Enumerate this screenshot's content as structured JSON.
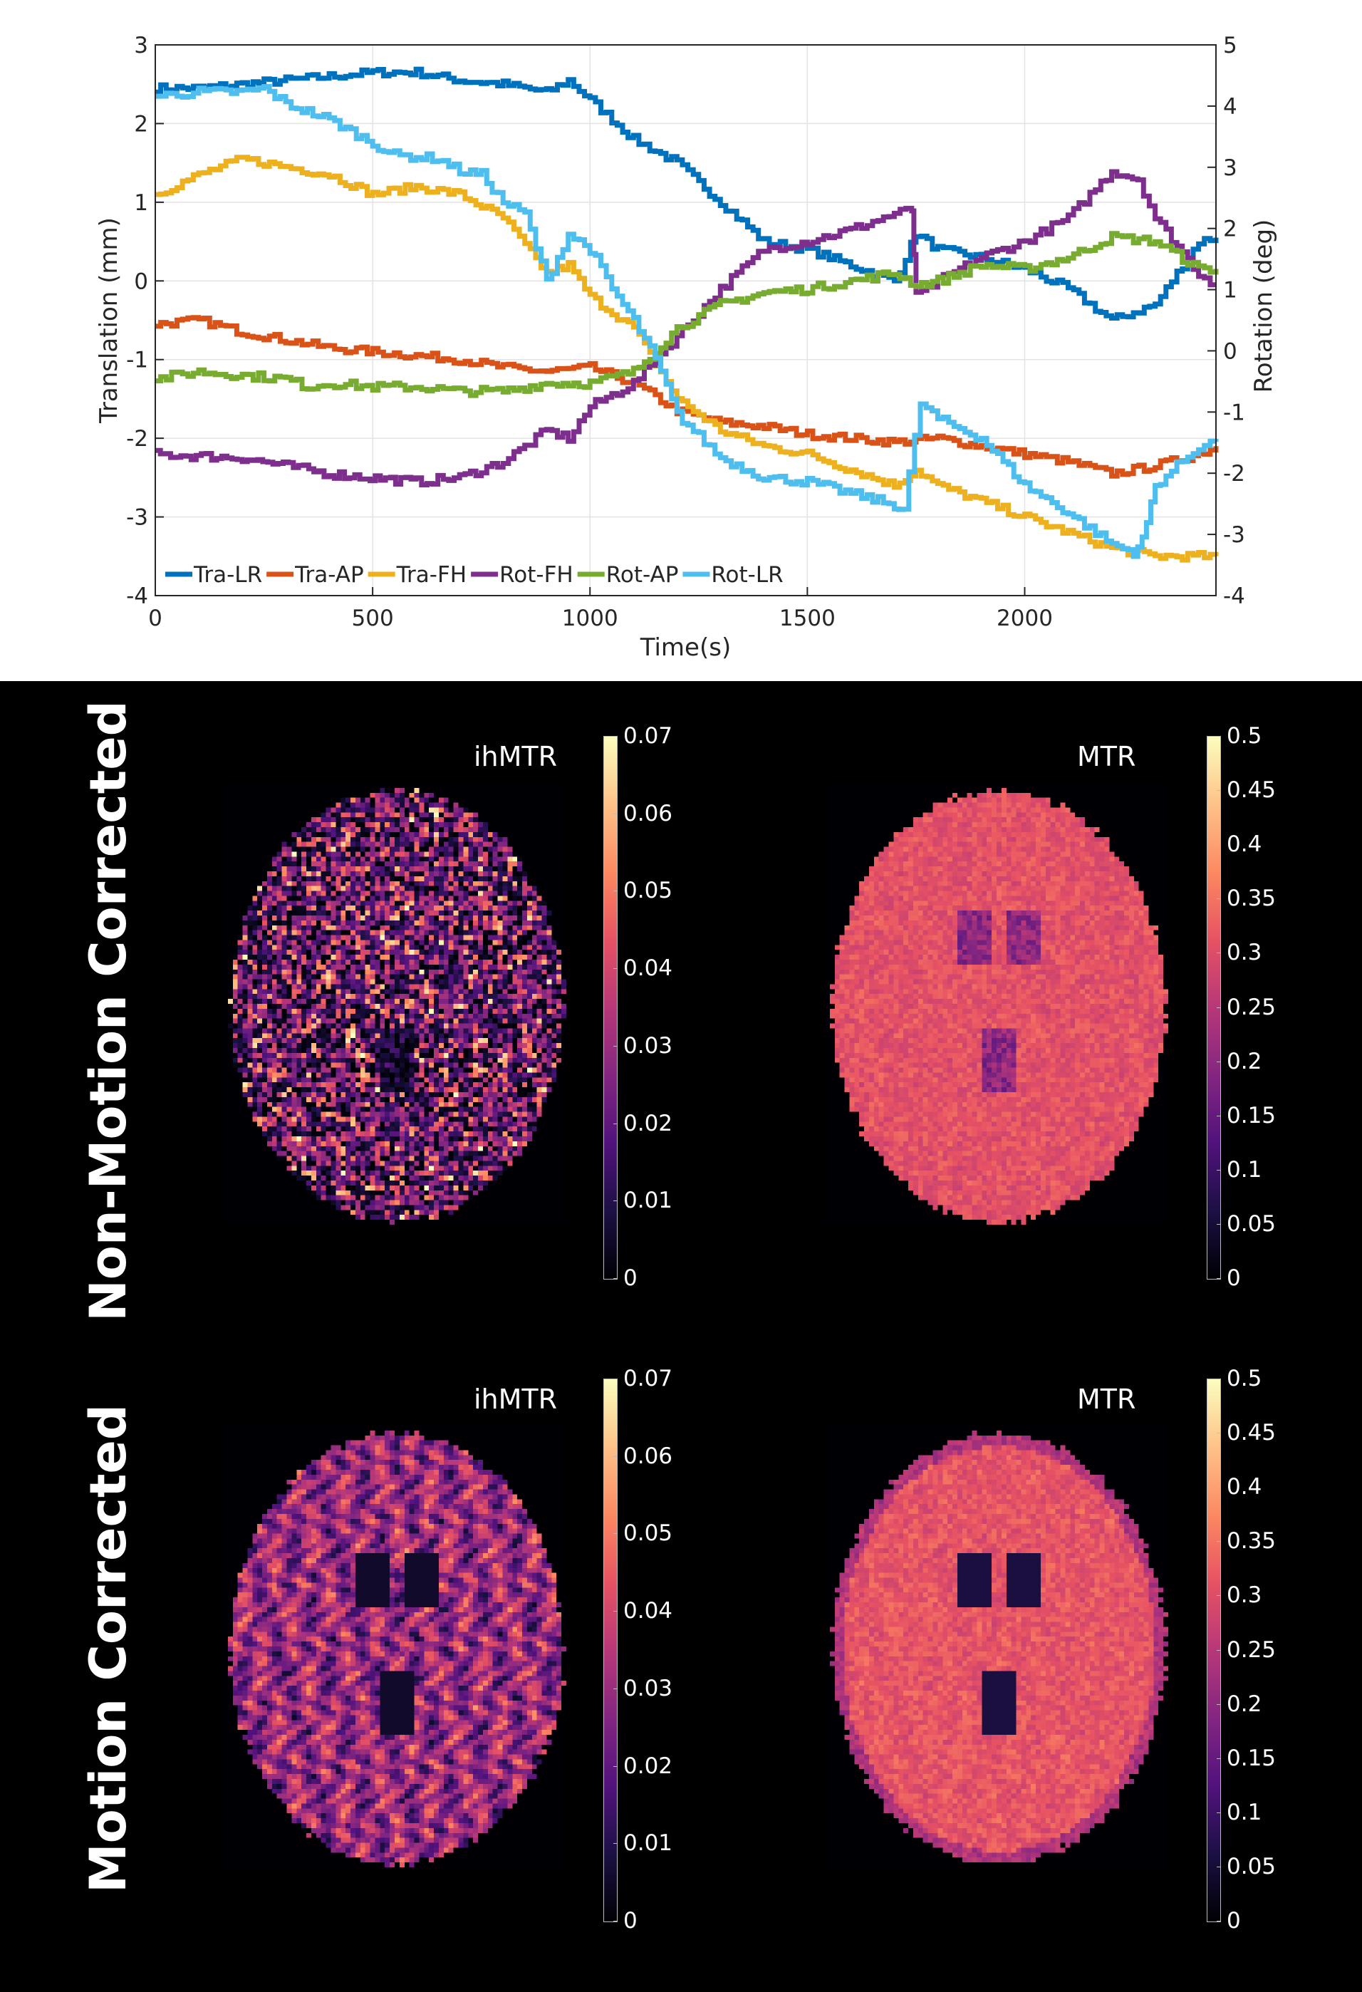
{
  "chart_data": {
    "type": "line",
    "xlabel": "Time(s)",
    "ylabel": "Translation (mm)",
    "y2label": "Rotation (deg)",
    "xlim": [
      0,
      2440
    ],
    "ylim": [
      -4,
      3
    ],
    "y2lim": [
      -4,
      5
    ],
    "xticks": [
      "0",
      "500",
      "1000",
      "1500",
      "2000"
    ],
    "yticks": [
      "3",
      "2",
      "1",
      "0",
      "-1",
      "-2",
      "-3",
      "-4"
    ],
    "y2ticks": [
      "5",
      "4",
      "3",
      "2",
      "1",
      "0",
      "-1",
      "-2",
      "-3",
      "-4"
    ],
    "grid": true,
    "legend_position": "bottom-left",
    "series": [
      {
        "name": "Tra-LR",
        "axis": "left",
        "color": "#0072bd",
        "t": [
          0,
          100,
          200,
          300,
          400,
          500,
          600,
          700,
          800,
          900,
          950,
          1000,
          1100,
          1200,
          1300,
          1400,
          1500,
          1600,
          1700,
          1750,
          1800,
          1900,
          2000,
          2100,
          2200,
          2300,
          2400,
          2440
        ],
        "values": [
          2.45,
          2.45,
          2.5,
          2.55,
          2.6,
          2.65,
          2.65,
          2.55,
          2.5,
          2.4,
          2.55,
          2.3,
          1.8,
          1.5,
          1.0,
          0.5,
          0.4,
          0.2,
          0,
          0.6,
          0.4,
          0.3,
          0.15,
          -0.1,
          -0.5,
          -0.3,
          0.5,
          0.55
        ]
      },
      {
        "name": "Tra-AP",
        "axis": "left",
        "color": "#d95319",
        "t": [
          0,
          100,
          200,
          300,
          400,
          500,
          600,
          700,
          800,
          900,
          1000,
          1100,
          1200,
          1300,
          1400,
          1500,
          1600,
          1700,
          1800,
          1900,
          2000,
          2100,
          2200,
          2300,
          2400,
          2440
        ],
        "values": [
          -0.55,
          -0.5,
          -0.65,
          -0.75,
          -0.85,
          -0.9,
          -0.95,
          -1.0,
          -1.1,
          -1.15,
          -1.1,
          -1.3,
          -1.65,
          -1.8,
          -1.85,
          -1.95,
          -2.0,
          -2.05,
          -2.0,
          -2.1,
          -2.2,
          -2.3,
          -2.45,
          -2.35,
          -2.2,
          -2.1
        ]
      },
      {
        "name": "Tra-FH",
        "axis": "left",
        "color": "#edb120",
        "t": [
          0,
          100,
          200,
          300,
          400,
          500,
          600,
          700,
          800,
          900,
          950,
          1000,
          1100,
          1200,
          1300,
          1400,
          1500,
          1600,
          1700,
          1750,
          1800,
          1900,
          2000,
          2100,
          2200,
          2300,
          2400,
          2440
        ],
        "values": [
          1.1,
          1.35,
          1.55,
          1.45,
          1.35,
          1.1,
          1.2,
          1.1,
          0.8,
          0.1,
          0.2,
          -0.2,
          -0.6,
          -1.5,
          -1.9,
          -2.1,
          -2.2,
          -2.4,
          -2.6,
          -2.4,
          -2.6,
          -2.8,
          -3.0,
          -3.2,
          -3.4,
          -3.5,
          -3.5,
          -3.5
        ]
      },
      {
        "name": "Rot-FH",
        "axis": "right",
        "color": "#7e2f8e",
        "t": [
          0,
          200,
          400,
          600,
          700,
          800,
          850,
          900,
          950,
          1000,
          1100,
          1200,
          1300,
          1400,
          1500,
          1600,
          1700,
          1740,
          1750,
          1800,
          1900,
          2000,
          2100,
          2200,
          2260,
          2300,
          2400,
          2440
        ],
        "values": [
          -1.69,
          -1.75,
          -2.01,
          -2.14,
          -2.07,
          -1.81,
          -1.56,
          -1.3,
          -1.43,
          -0.91,
          -0.53,
          0.24,
          1.01,
          1.66,
          1.79,
          1.98,
          2.24,
          2.3,
          0.89,
          1.14,
          1.53,
          1.79,
          2.17,
          2.94,
          2.81,
          2.17,
          1.27,
          1.08
        ]
      },
      {
        "name": "Rot-AP",
        "axis": "right",
        "color": "#77ac30",
        "t": [
          0,
          100,
          200,
          300,
          350,
          400,
          500,
          600,
          700,
          800,
          900,
          1000,
          1100,
          1200,
          1300,
          1400,
          1500,
          1600,
          1700,
          1750,
          1800,
          1900,
          2000,
          2100,
          2200,
          2300,
          2400,
          2440
        ],
        "values": [
          -0.46,
          -0.34,
          -0.4,
          -0.46,
          -0.59,
          -0.53,
          -0.59,
          -0.59,
          -0.66,
          -0.66,
          -0.53,
          -0.53,
          -0.34,
          0.37,
          0.76,
          0.95,
          1.01,
          1.14,
          1.27,
          1.08,
          1.14,
          1.4,
          1.34,
          1.53,
          1.86,
          1.79,
          1.34,
          1.34
        ]
      },
      {
        "name": "Rot-LR",
        "axis": "right",
        "color": "#4dbeee",
        "t": [
          0,
          100,
          200,
          250,
          300,
          400,
          500,
          550,
          650,
          700,
          750,
          800,
          850,
          900,
          950,
          1000,
          1050,
          1100,
          1150,
          1200,
          1300,
          1400,
          1500,
          1600,
          1700,
          1720,
          1760,
          1800,
          1900,
          2000,
          2100,
          2200,
          2250,
          2270,
          2300,
          2400,
          2440
        ],
        "values": [
          4.16,
          4.23,
          4.23,
          4.29,
          4.04,
          3.78,
          3.39,
          3.2,
          3.14,
          2.94,
          2.88,
          2.43,
          2.24,
          1.14,
          1.91,
          1.66,
          1.01,
          0.5,
          -0.14,
          -1.04,
          -1.75,
          -2.07,
          -2.14,
          -2.33,
          -2.52,
          -2.59,
          -0.85,
          -1.11,
          -1.43,
          -2.2,
          -2.65,
          -3.16,
          -3.29,
          -3.1,
          -2.2,
          -1.56,
          -1.49
        ]
      }
    ]
  },
  "images": {
    "rows": [
      {
        "label": "Non-Motion Corrected"
      },
      {
        "label": "Motion Corrected"
      }
    ],
    "panels": [
      {
        "title": "ihMTR",
        "colorbar_ticks": [
          "0.07",
          "0.06",
          "0.05",
          "0.04",
          "0.03",
          "0.02",
          "0.01",
          "0"
        ],
        "range": [
          0,
          0.07
        ]
      },
      {
        "title": "MTR",
        "colorbar_ticks": [
          "0.5",
          "0.45",
          "0.4",
          "0.35",
          "0.3",
          "0.25",
          "0.2",
          "0.15",
          "0.1",
          "0.05",
          "0"
        ],
        "range": [
          0,
          0.5
        ]
      }
    ],
    "colormap": "magma"
  }
}
